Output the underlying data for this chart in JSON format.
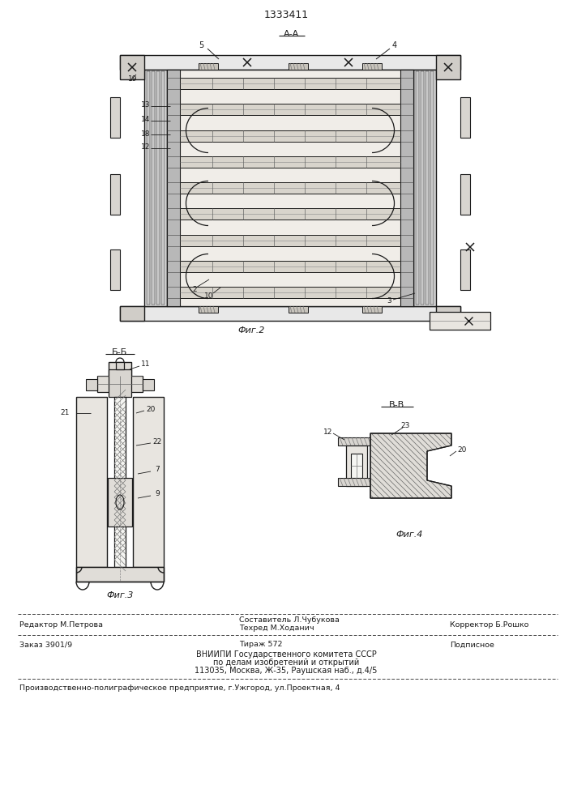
{
  "patent_number": "1333411",
  "bg_color": "#ffffff",
  "line_color": "#1a1a1a",
  "fig2_label": "А-А",
  "fig3_label": "Б-Б",
  "fig4_label": "В-В",
  "fig2_caption": "Фиг.2",
  "fig3_caption": "Фиг.3",
  "fig4_caption": "Фиг.4",
  "footer_line1_left": "Редактор М.Петрова",
  "footer_line1_center1": "Составитель Л.Чубукова",
  "footer_line1_center2": "Техред М.Ходанич",
  "footer_line1_right": "Корректор Б.Рошко",
  "footer_line2_left": "Заказ 3901/9",
  "footer_line2_center": "Тираж 572",
  "footer_line2_right": "Подписное",
  "footer_line3": "ВНИИПИ Государственного комитета СССР",
  "footer_line4": "по делам изобретений и открытий",
  "footer_line5": "113035, Москва, Ж-35, Раушская наб., д.4/5",
  "footer_last": "Производственно-полиграфическое предприятие, г.Ужгород, ул.Проектная, 4"
}
